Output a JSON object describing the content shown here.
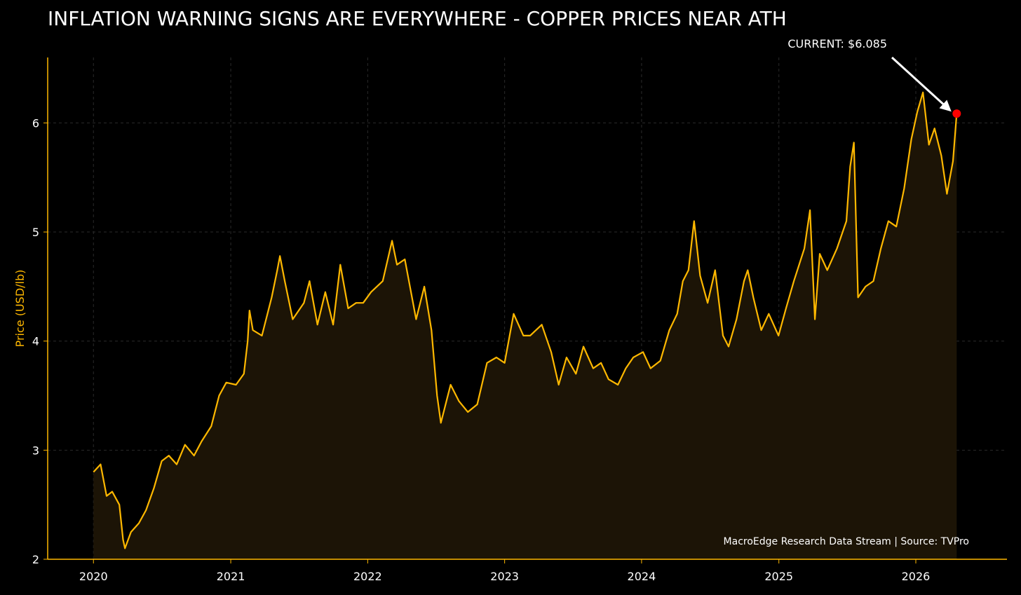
{
  "chart_data": {
    "type": "area",
    "title": "INFLATION WARNING SIGNS ARE EVERYWHERE - COPPER PRICES NEAR ATH",
    "xlabel": "",
    "ylabel": "Price (USD/lb)",
    "x_ticks": [
      "2020",
      "2021",
      "2022",
      "2023",
      "2024",
      "2025",
      "2026"
    ],
    "y_ticks": [
      2,
      3,
      4,
      5,
      6
    ],
    "xlim": [
      "2019-09-01",
      "2026-09-01"
    ],
    "ylim": [
      2,
      6.6
    ],
    "grid": true,
    "annotation": "CURRENT: $6.085",
    "source_note": "MacroEdge Research Data Stream | Source: TVPro",
    "current_value": 6.085,
    "series": [
      {
        "values": [
          [
            "2020-01-01",
            2.8
          ],
          [
            "2020-01-20",
            2.87
          ],
          [
            "2020-02-05",
            2.58
          ],
          [
            "2020-02-20",
            2.62
          ],
          [
            "2020-03-10",
            2.5
          ],
          [
            "2020-03-20",
            2.18
          ],
          [
            "2020-03-25",
            2.1
          ],
          [
            "2020-04-10",
            2.25
          ],
          [
            "2020-05-01",
            2.33
          ],
          [
            "2020-05-20",
            2.45
          ],
          [
            "2020-06-10",
            2.65
          ],
          [
            "2020-07-01",
            2.9
          ],
          [
            "2020-07-20",
            2.95
          ],
          [
            "2020-08-10",
            2.87
          ],
          [
            "2020-09-01",
            3.05
          ],
          [
            "2020-09-25",
            2.95
          ],
          [
            "2020-10-15",
            3.08
          ],
          [
            "2020-11-10",
            3.22
          ],
          [
            "2020-12-01",
            3.5
          ],
          [
            "2020-12-20",
            3.62
          ],
          [
            "2021-01-15",
            3.6
          ],
          [
            "2021-02-05",
            3.7
          ],
          [
            "2021-02-15",
            4.0
          ],
          [
            "2021-02-20",
            4.28
          ],
          [
            "2021-03-01",
            4.1
          ],
          [
            "2021-03-25",
            4.05
          ],
          [
            "2021-04-20",
            4.4
          ],
          [
            "2021-05-05",
            4.65
          ],
          [
            "2021-05-12",
            4.78
          ],
          [
            "2021-05-25",
            4.55
          ],
          [
            "2021-06-15",
            4.2
          ],
          [
            "2021-07-15",
            4.35
          ],
          [
            "2021-07-30",
            4.55
          ],
          [
            "2021-08-20",
            4.15
          ],
          [
            "2021-09-10",
            4.45
          ],
          [
            "2021-10-01",
            4.15
          ],
          [
            "2021-10-20",
            4.7
          ],
          [
            "2021-11-10",
            4.3
          ],
          [
            "2021-12-01",
            4.35
          ],
          [
            "2021-12-20",
            4.35
          ],
          [
            "2022-01-10",
            4.45
          ],
          [
            "2022-02-10",
            4.55
          ],
          [
            "2022-03-07",
            4.92
          ],
          [
            "2022-03-20",
            4.7
          ],
          [
            "2022-04-10",
            4.75
          ],
          [
            "2022-05-10",
            4.2
          ],
          [
            "2022-06-01",
            4.5
          ],
          [
            "2022-06-20",
            4.1
          ],
          [
            "2022-07-05",
            3.5
          ],
          [
            "2022-07-15",
            3.25
          ],
          [
            "2022-08-10",
            3.6
          ],
          [
            "2022-09-01",
            3.45
          ],
          [
            "2022-09-25",
            3.35
          ],
          [
            "2022-10-20",
            3.42
          ],
          [
            "2022-11-15",
            3.8
          ],
          [
            "2022-12-10",
            3.85
          ],
          [
            "2023-01-01",
            3.8
          ],
          [
            "2023-01-25",
            4.25
          ],
          [
            "2023-02-20",
            4.05
          ],
          [
            "2023-03-10",
            4.05
          ],
          [
            "2023-04-10",
            4.15
          ],
          [
            "2023-05-05",
            3.9
          ],
          [
            "2023-05-25",
            3.6
          ],
          [
            "2023-06-15",
            3.85
          ],
          [
            "2023-07-10",
            3.7
          ],
          [
            "2023-07-30",
            3.95
          ],
          [
            "2023-08-25",
            3.75
          ],
          [
            "2023-09-15",
            3.8
          ],
          [
            "2023-10-05",
            3.65
          ],
          [
            "2023-10-30",
            3.6
          ],
          [
            "2023-11-20",
            3.75
          ],
          [
            "2023-12-10",
            3.85
          ],
          [
            "2024-01-05",
            3.9
          ],
          [
            "2024-01-25",
            3.75
          ],
          [
            "2024-02-20",
            3.82
          ],
          [
            "2024-03-15",
            4.1
          ],
          [
            "2024-04-05",
            4.25
          ],
          [
            "2024-04-20",
            4.55
          ],
          [
            "2024-05-05",
            4.65
          ],
          [
            "2024-05-20",
            5.1
          ],
          [
            "2024-06-05",
            4.6
          ],
          [
            "2024-06-25",
            4.35
          ],
          [
            "2024-07-15",
            4.65
          ],
          [
            "2024-08-05",
            4.05
          ],
          [
            "2024-08-20",
            3.95
          ],
          [
            "2024-09-10",
            4.2
          ],
          [
            "2024-09-30",
            4.55
          ],
          [
            "2024-10-10",
            4.65
          ],
          [
            "2024-10-25",
            4.4
          ],
          [
            "2024-11-15",
            4.1
          ],
          [
            "2024-12-05",
            4.25
          ],
          [
            "2024-12-31",
            4.05
          ],
          [
            "2025-01-20",
            4.3
          ],
          [
            "2025-02-10",
            4.55
          ],
          [
            "2025-03-10",
            4.85
          ],
          [
            "2025-03-25",
            5.2
          ],
          [
            "2025-04-07",
            4.2
          ],
          [
            "2025-04-20",
            4.8
          ],
          [
            "2025-05-10",
            4.65
          ],
          [
            "2025-06-05",
            4.85
          ],
          [
            "2025-06-30",
            5.1
          ],
          [
            "2025-07-10",
            5.6
          ],
          [
            "2025-07-20",
            5.82
          ],
          [
            "2025-07-31",
            4.4
          ],
          [
            "2025-08-20",
            4.5
          ],
          [
            "2025-09-10",
            4.55
          ],
          [
            "2025-09-30",
            4.85
          ],
          [
            "2025-10-20",
            5.1
          ],
          [
            "2025-11-10",
            5.05
          ],
          [
            "2025-12-01",
            5.4
          ],
          [
            "2025-12-20",
            5.85
          ],
          [
            "2026-01-05",
            6.1
          ],
          [
            "2026-01-20",
            6.28
          ],
          [
            "2026-02-05",
            5.8
          ],
          [
            "2026-02-20",
            5.95
          ],
          [
            "2026-03-10",
            5.7
          ],
          [
            "2026-03-25",
            5.35
          ],
          [
            "2026-04-10",
            5.65
          ],
          [
            "2026-04-20",
            6.085
          ]
        ]
      }
    ],
    "colors": {
      "line": "#FFB800",
      "fill": "#1C1406",
      "axis": "#FFB800",
      "grid": "#2a2a2a",
      "marker": "#FF0000",
      "ylabel": "#FFB800",
      "text": "#FFFFFF",
      "background": "#000000"
    }
  }
}
